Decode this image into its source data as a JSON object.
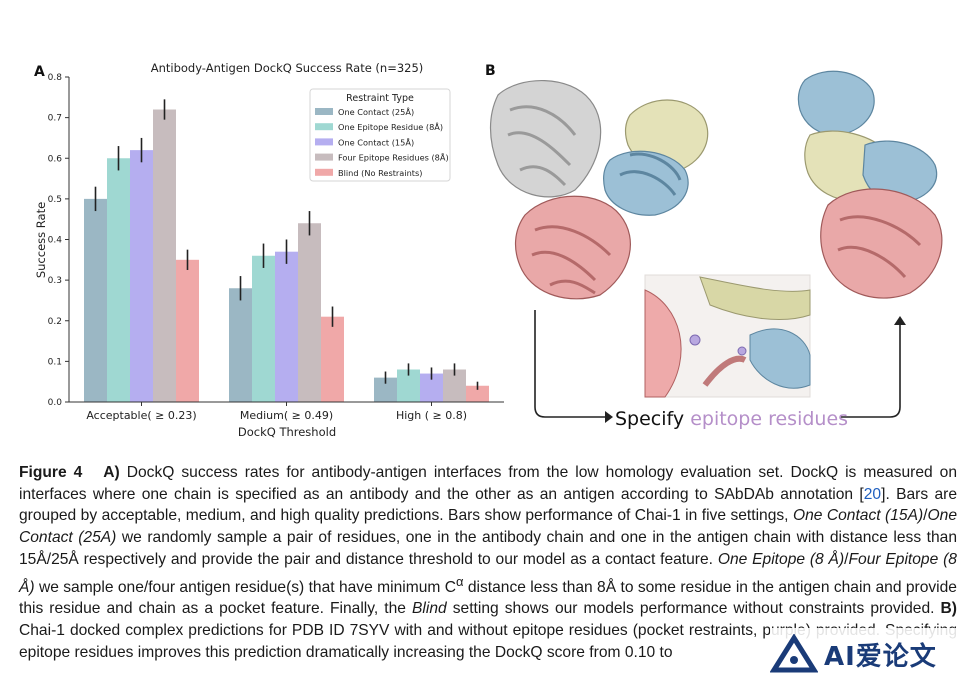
{
  "panel_a_label": "A",
  "panel_b_label": "B",
  "chart_data": {
    "type": "bar",
    "title": "Antibody-Antigen DockQ Success Rate (n=325)",
    "xlabel": "DockQ Threshold",
    "ylabel": "Success Rate",
    "ylim": [
      0,
      0.8
    ],
    "yticks": [
      "0.0",
      "0.1",
      "0.2",
      "0.3",
      "0.4",
      "0.5",
      "0.6",
      "0.7",
      "0.8"
    ],
    "categories": [
      "Acceptable( ≥ 0.23)",
      "Medium( ≥ 0.49)",
      "High ( ≥ 0.8)"
    ],
    "legend_title": "Restraint Type",
    "legend_placement": "top-right",
    "series": [
      {
        "name": "One Contact (25Å)",
        "color": "#9bb7c4",
        "values": [
          0.5,
          0.28,
          0.06
        ],
        "err": [
          0.03,
          0.03,
          0.015
        ]
      },
      {
        "name": "One Epitope Residue (8Å)",
        "color": "#9fd8d2",
        "values": [
          0.6,
          0.36,
          0.08
        ],
        "err": [
          0.03,
          0.03,
          0.015
        ]
      },
      {
        "name": "One Contact (15Å)",
        "color": "#b5aef0",
        "values": [
          0.62,
          0.37,
          0.07
        ],
        "err": [
          0.03,
          0.03,
          0.015
        ]
      },
      {
        "name": "Four Epitope Residues (8Å)",
        "color": "#c7bcbe",
        "values": [
          0.72,
          0.44,
          0.08
        ],
        "err": [
          0.025,
          0.03,
          0.015
        ]
      },
      {
        "name": "Blind (No Restraints)",
        "color": "#f0a8a8",
        "values": [
          0.35,
          0.21,
          0.04
        ],
        "err": [
          0.025,
          0.025,
          0.01
        ]
      }
    ]
  },
  "panel_b": {
    "arrow_label_prefix": "Specify ",
    "arrow_label_highlight": "epitope residues",
    "highlight_color": "#b58fc9"
  },
  "caption": {
    "fig_label": "Figure 4",
    "part_a": "A)",
    "s1": " DockQ success rates for antibody-antigen interfaces from the low homology evaluation set. DockQ is measured on interfaces where one chain is specified as an antibody and the other as an antigen according to SAbDAb annotation [",
    "cite": "20",
    "s2": "]. Bars are grouped by acceptable, medium, and high quality predictions. Bars show performance of Chai-1 in five settings, ",
    "i1": "One Contact (15A)",
    "slash": "/",
    "i2": "One Contact (25A)",
    "s3": " we randomly sample a pair of residues, one in the antibody chain and one in the antigen chain with distance less than 15Å/25Å respectively and provide the pair and distance threshold to our model as a contact feature. ",
    "i3": "One Epitope (8 Å)",
    "i4": "Four Epitope (8 Å)",
    "s4": " we sample one/four antigen residue(s) that have minimum C",
    "alpha": "α",
    "s5": " distance less than 8Å to some residue in the antigen chain and provide this residue and chain as a pocket feature. Finally, the ",
    "i5": "Blind",
    "s6": " setting shows our models performance without constraints provided. ",
    "part_b": "B)",
    "s7": " Chai-1 docked complex predictions for PDB ID 7SYV with and without epitope residues (pocket restraints, purple) provided. Specifying epitope residues improves this prediction dramatically increasing the DockQ score from 0.10 to"
  },
  "watermark": "AI爱论文"
}
